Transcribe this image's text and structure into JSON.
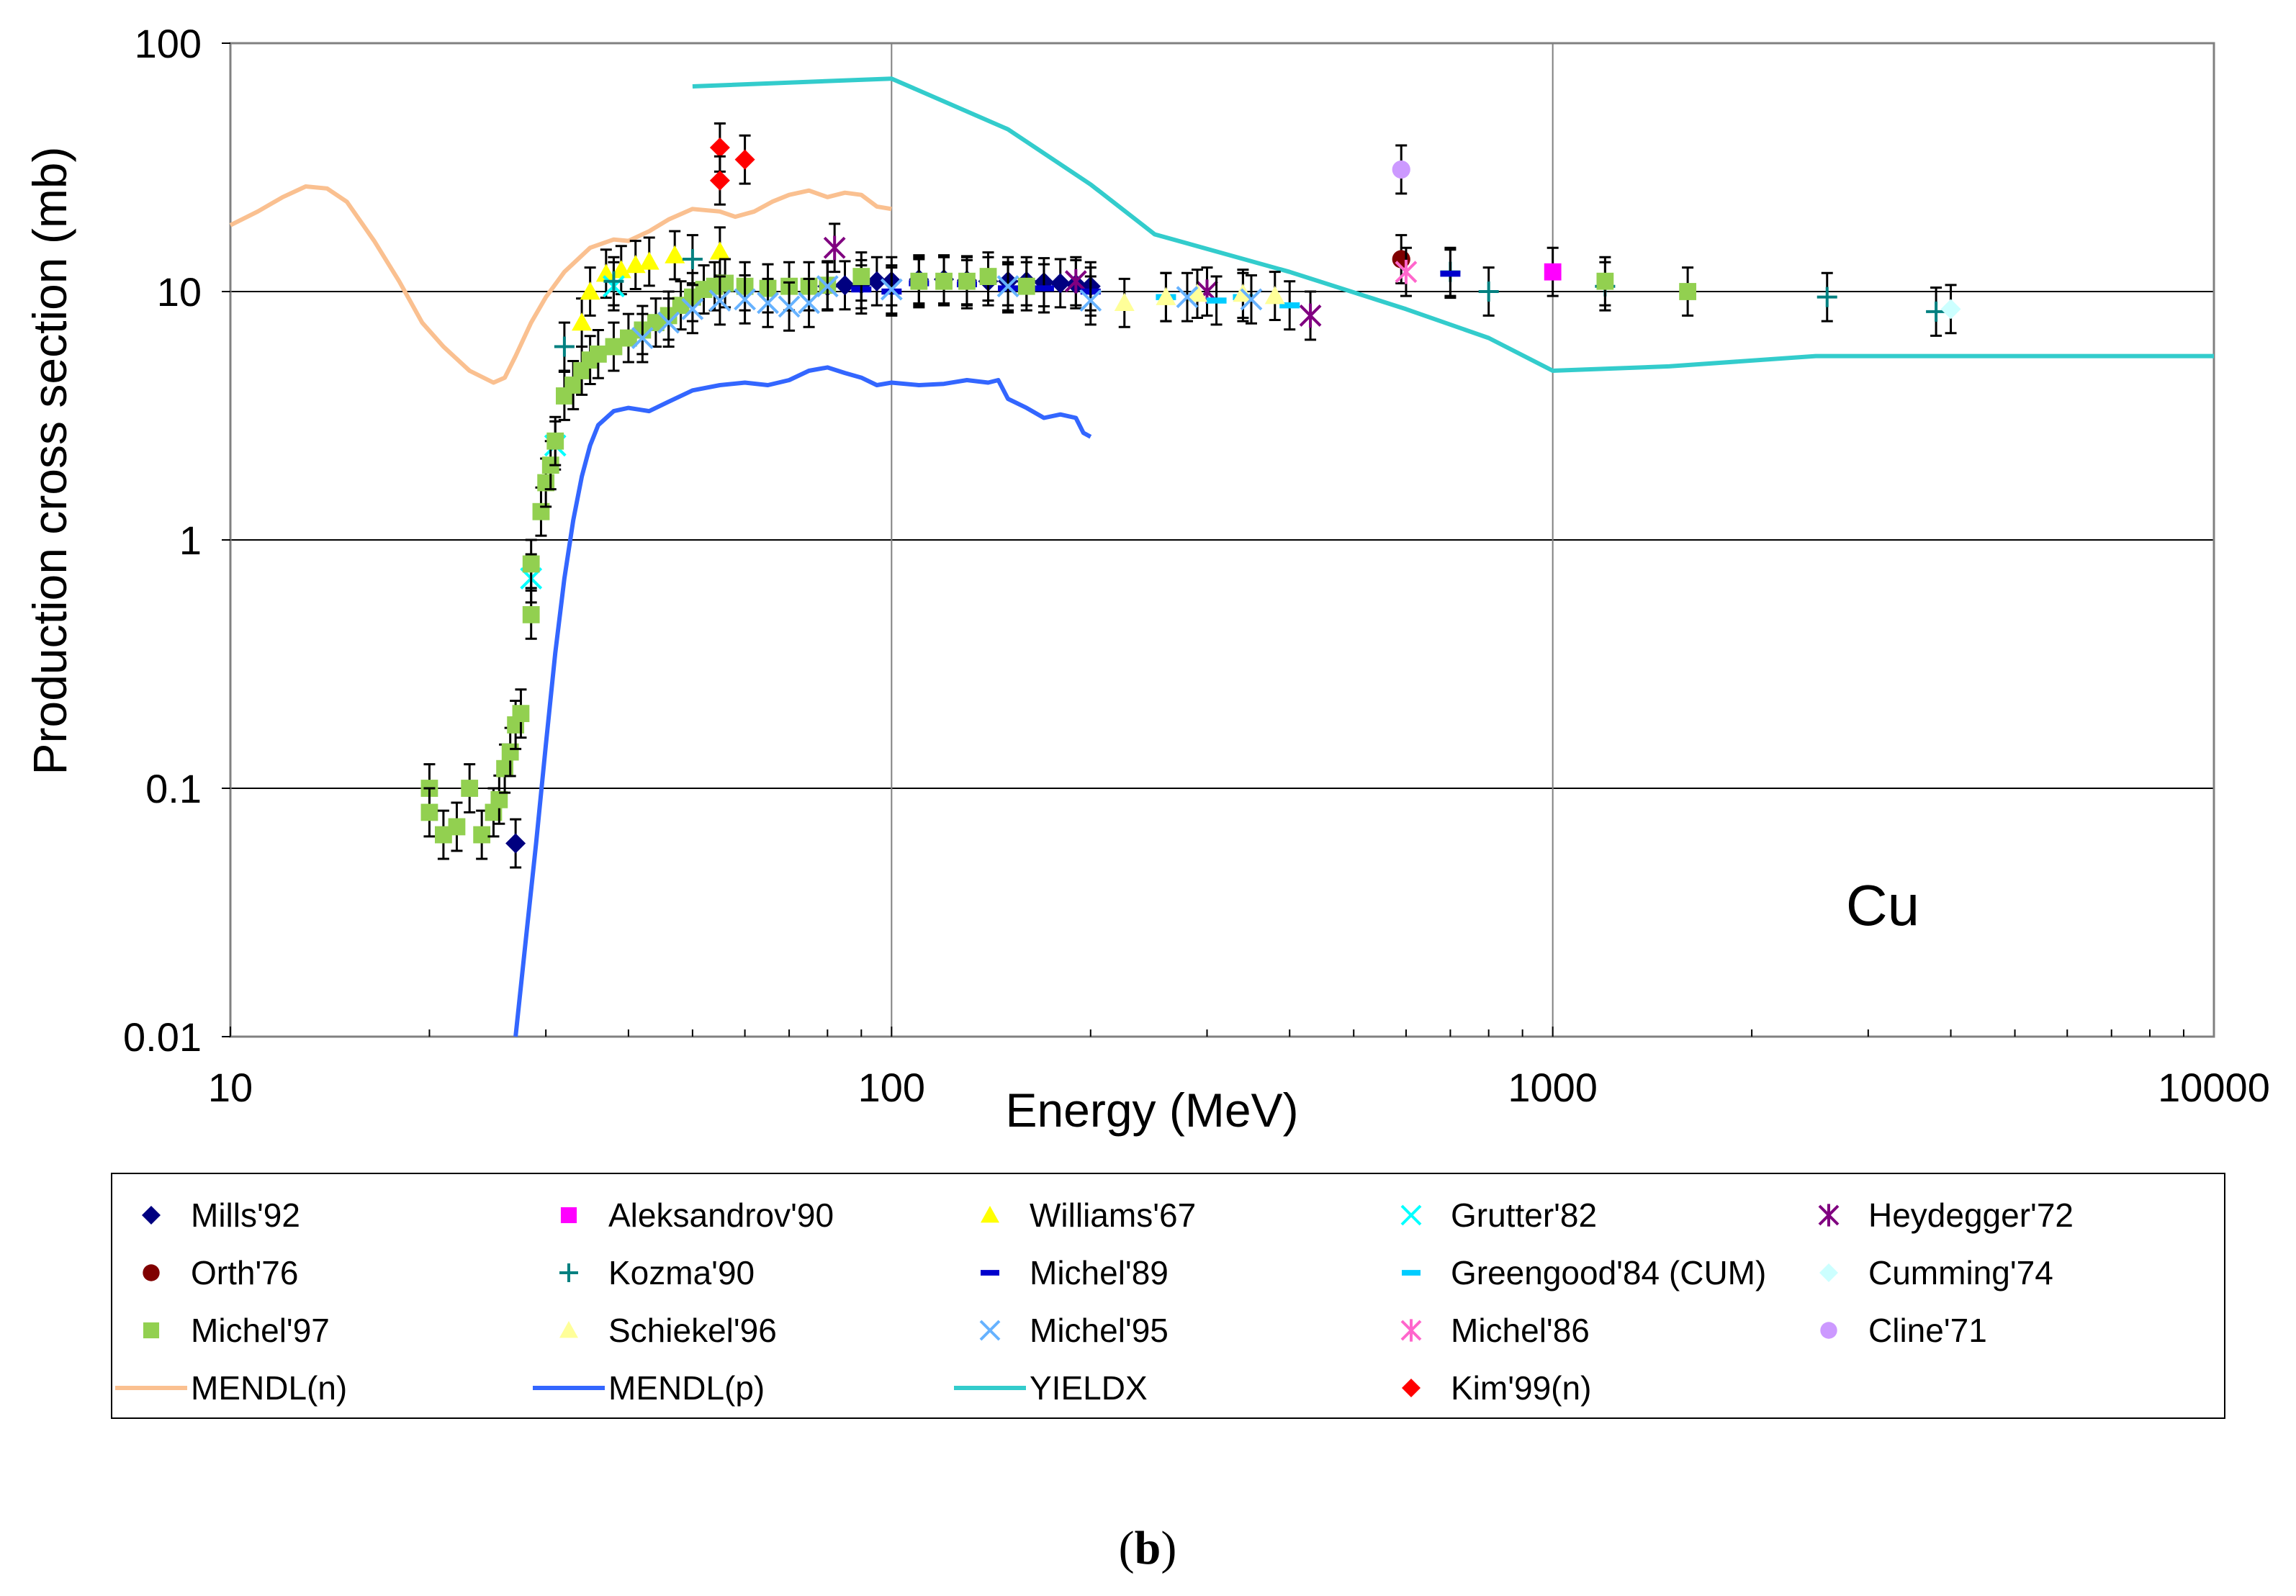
{
  "chart_data": {
    "type": "scatter",
    "xscale": "log",
    "yscale": "log",
    "xlabel": "Energy (MeV)",
    "ylabel": "Production cross section (mb)",
    "xlim": [
      10,
      10000
    ],
    "ylim": [
      0.01,
      100
    ],
    "xticks": [
      "10",
      "100",
      "1000",
      "10000"
    ],
    "yticks": [
      "0.01",
      "0.1",
      "1",
      "10",
      "100"
    ],
    "grid": true,
    "annotation": "Cu",
    "caption_bold": "b",
    "caption": "(b)",
    "series": [
      {
        "name": "Mills'92",
        "marker": "diamond",
        "color": "#000080",
        "points": [
          [
            27,
            0.06
          ],
          [
            80,
            10.5
          ],
          [
            85,
            10.6
          ],
          [
            90,
            10.7
          ],
          [
            95,
            11
          ],
          [
            100,
            11
          ],
          [
            110,
            11.2
          ],
          [
            120,
            11.2
          ],
          [
            130,
            11.1
          ],
          [
            140,
            11
          ],
          [
            150,
            11
          ],
          [
            160,
            11
          ],
          [
            170,
            10.9
          ],
          [
            180,
            10.8
          ],
          [
            190,
            10.7
          ],
          [
            200,
            10.5
          ]
        ]
      },
      {
        "name": "Aleksandrov'90",
        "marker": "square",
        "color": "#FF00FF",
        "points": [
          [
            1000,
            12
          ]
        ]
      },
      {
        "name": "Williams'67",
        "marker": "triangle",
        "color": "#FFFF00",
        "points": [
          [
            34,
            7.5
          ],
          [
            35,
            10
          ],
          [
            37,
            11.8
          ],
          [
            39,
            12.2
          ],
          [
            41,
            12.8
          ],
          [
            43,
            13.2
          ],
          [
            47,
            14
          ],
          [
            55,
            14.5
          ]
        ]
      },
      {
        "name": "Grutter'82",
        "marker": "x",
        "color": "#00FFFF",
        "points": [
          [
            28.5,
            0.7
          ],
          [
            31,
            2.4
          ],
          [
            38,
            10.5
          ]
        ]
      },
      {
        "name": "Heydegger'72",
        "marker": "star",
        "color": "#800080",
        "points": [
          [
            82,
            15
          ],
          [
            190,
            11
          ],
          [
            300,
            10
          ],
          [
            430,
            8
          ]
        ]
      },
      {
        "name": "Orth'76",
        "marker": "circle",
        "color": "#800000",
        "points": [
          [
            590,
            13.5
          ]
        ]
      },
      {
        "name": "Kozma'90",
        "marker": "plus",
        "color": "#008080",
        "points": [
          [
            32,
            6
          ],
          [
            38,
            11
          ],
          [
            50,
            13.5
          ],
          [
            700,
            12
          ],
          [
            800,
            10
          ],
          [
            1200,
            10.5
          ],
          [
            2600,
            9.5
          ],
          [
            3800,
            8.3
          ]
        ]
      },
      {
        "name": "Michel'89",
        "marker": "dash",
        "color": "#0000CC",
        "points": [
          [
            90,
            10.2
          ],
          [
            100,
            10
          ],
          [
            110,
            10.8
          ],
          [
            130,
            10.7
          ],
          [
            150,
            10.3
          ],
          [
            170,
            10.3
          ],
          [
            200,
            10
          ],
          [
            700,
            11.8
          ]
        ]
      },
      {
        "name": "Greengood'84 (CUM)",
        "marker": "dash",
        "color": "#00CCFF",
        "points": [
          [
            260,
            9.5
          ],
          [
            310,
            9.2
          ],
          [
            340,
            9.5
          ],
          [
            400,
            8.8
          ]
        ]
      },
      {
        "name": "Cumming'74",
        "marker": "diamond",
        "color": "#CCFFFF",
        "points": [
          [
            4000,
            8.5
          ]
        ]
      },
      {
        "name": "Michel'97",
        "marker": "square",
        "color": "#92D050",
        "points": [
          [
            20,
            0.1
          ],
          [
            20,
            0.08
          ],
          [
            21,
            0.065
          ],
          [
            22,
            0.07
          ],
          [
            23,
            0.1
          ],
          [
            24,
            0.065
          ],
          [
            25,
            0.08
          ],
          [
            25.5,
            0.09
          ],
          [
            26,
            0.12
          ],
          [
            26.5,
            0.14
          ],
          [
            27,
            0.18
          ],
          [
            27.5,
            0.2
          ],
          [
            28.5,
            0.5
          ],
          [
            28.5,
            0.8
          ],
          [
            29.5,
            1.3
          ],
          [
            30,
            1.7
          ],
          [
            30.5,
            2.0
          ],
          [
            31,
            2.5
          ],
          [
            32,
            3.8
          ],
          [
            33,
            4.2
          ],
          [
            34,
            4.8
          ],
          [
            35,
            5.3
          ],
          [
            36,
            5.6
          ],
          [
            38,
            6
          ],
          [
            40,
            6.5
          ],
          [
            42,
            7
          ],
          [
            44,
            7.5
          ],
          [
            46,
            8
          ],
          [
            48,
            8.8
          ],
          [
            50,
            9.5
          ],
          [
            52,
            10.2
          ],
          [
            54,
            10.5
          ],
          [
            56,
            10.8
          ],
          [
            60,
            10.5
          ],
          [
            65,
            10.3
          ],
          [
            70,
            10.5
          ],
          [
            75,
            10.5
          ],
          [
            80,
            10.6
          ],
          [
            90,
            11.5
          ],
          [
            110,
            11
          ],
          [
            120,
            11
          ],
          [
            130,
            11
          ],
          [
            140,
            11.5
          ],
          [
            160,
            10.5
          ],
          [
            1200,
            11
          ],
          [
            1600,
            10
          ]
        ]
      },
      {
        "name": "Schiekel'96",
        "marker": "triangle",
        "color": "#FFFF99",
        "points": [
          [
            225,
            9
          ],
          [
            260,
            9.5
          ],
          [
            290,
            9.8
          ],
          [
            340,
            9.8
          ],
          [
            380,
            9.6
          ]
        ]
      },
      {
        "name": "Michel'95",
        "marker": "x",
        "color": "#66B2FF",
        "points": [
          [
            42,
            6.5
          ],
          [
            46,
            7.5
          ],
          [
            50,
            8.5
          ],
          [
            55,
            9.2
          ],
          [
            60,
            9.3
          ],
          [
            65,
            9
          ],
          [
            70,
            8.7
          ],
          [
            75,
            9
          ],
          [
            80,
            10.5
          ],
          [
            100,
            10.2
          ],
          [
            150,
            10.5
          ],
          [
            200,
            9.2
          ],
          [
            280,
            9.5
          ],
          [
            350,
            9.3
          ]
        ]
      },
      {
        "name": "Michel'86",
        "marker": "star",
        "color": "#FF66CC",
        "points": [
          [
            600,
            12
          ]
        ]
      },
      {
        "name": "Cline'71",
        "marker": "circle",
        "color": "#CC99FF",
        "points": [
          [
            590,
            31
          ]
        ]
      },
      {
        "name": "Kim'99(n)",
        "marker": "diamond",
        "color": "#FF0000",
        "points": [
          [
            55,
            38
          ],
          [
            55,
            28
          ],
          [
            60,
            34
          ]
        ]
      }
    ],
    "curves": [
      {
        "name": "MENDL(n)",
        "color": "#FAC090",
        "points": [
          [
            10,
            18.5
          ],
          [
            11,
            21
          ],
          [
            12,
            24
          ],
          [
            13,
            26.5
          ],
          [
            14,
            26
          ],
          [
            15,
            23
          ],
          [
            16.5,
            16
          ],
          [
            18,
            11
          ],
          [
            19.5,
            7.5
          ],
          [
            21,
            6
          ],
          [
            23,
            4.8
          ],
          [
            25,
            4.3
          ],
          [
            26,
            4.5
          ],
          [
            27,
            5.5
          ],
          [
            28.5,
            7.5
          ],
          [
            30,
            9.5
          ],
          [
            32,
            12
          ],
          [
            35,
            15
          ],
          [
            38,
            16.2
          ],
          [
            40,
            16
          ],
          [
            43,
            17.5
          ],
          [
            46,
            19.5
          ],
          [
            50,
            21.5
          ],
          [
            55,
            21
          ],
          [
            58,
            20
          ],
          [
            62,
            21
          ],
          [
            66,
            23
          ],
          [
            70,
            24.5
          ],
          [
            75,
            25.5
          ],
          [
            80,
            24
          ],
          [
            85,
            25
          ],
          [
            90,
            24.5
          ],
          [
            95,
            22
          ],
          [
            100,
            21.5
          ]
        ]
      },
      {
        "name": "MENDL(p)",
        "color": "#3366FF",
        "points": [
          [
            27,
            0.01
          ],
          [
            28,
            0.025
          ],
          [
            29,
            0.06
          ],
          [
            30,
            0.15
          ],
          [
            31,
            0.35
          ],
          [
            32,
            0.7
          ],
          [
            33,
            1.2
          ],
          [
            34,
            1.8
          ],
          [
            35,
            2.4
          ],
          [
            36,
            2.9
          ],
          [
            38,
            3.3
          ],
          [
            40,
            3.4
          ],
          [
            43,
            3.3
          ],
          [
            46,
            3.6
          ],
          [
            50,
            4.0
          ],
          [
            55,
            4.2
          ],
          [
            60,
            4.3
          ],
          [
            65,
            4.2
          ],
          [
            70,
            4.4
          ],
          [
            75,
            4.8
          ],
          [
            80,
            4.95
          ],
          [
            85,
            4.7
          ],
          [
            90,
            4.5
          ],
          [
            95,
            4.2
          ],
          [
            100,
            4.3
          ],
          [
            110,
            4.2
          ],
          [
            120,
            4.25
          ],
          [
            130,
            4.4
          ],
          [
            140,
            4.3
          ],
          [
            145,
            4.4
          ],
          [
            150,
            3.7
          ],
          [
            160,
            3.4
          ],
          [
            170,
            3.1
          ],
          [
            180,
            3.2
          ],
          [
            190,
            3.1
          ],
          [
            195,
            2.7
          ],
          [
            200,
            2.6
          ]
        ]
      },
      {
        "name": "YIELDX",
        "color": "#33CCCC",
        "points": [
          [
            50,
            67
          ],
          [
            100,
            72
          ],
          [
            150,
            45
          ],
          [
            200,
            27
          ],
          [
            250,
            17
          ],
          [
            400,
            12
          ],
          [
            600,
            8.5
          ],
          [
            800,
            6.5
          ],
          [
            1000,
            4.8
          ],
          [
            1500,
            5
          ],
          [
            2500,
            5.5
          ],
          [
            10000,
            5.5
          ]
        ]
      }
    ],
    "legend": {
      "position": "bottom",
      "entries": [
        {
          "label": "Mills'92",
          "kind": "marker",
          "marker": "diamond",
          "color": "#000080"
        },
        {
          "label": "Aleksandrov'90",
          "kind": "marker",
          "marker": "square",
          "color": "#FF00FF"
        },
        {
          "label": "Williams'67",
          "kind": "marker",
          "marker": "triangle",
          "color": "#FFFF00"
        },
        {
          "label": "Grutter'82",
          "kind": "marker",
          "marker": "x",
          "color": "#00FFFF"
        },
        {
          "label": "Heydegger'72",
          "kind": "marker",
          "marker": "star",
          "color": "#800080"
        },
        {
          "label": "Orth'76",
          "kind": "marker",
          "marker": "circle",
          "color": "#800000"
        },
        {
          "label": "Kozma'90",
          "kind": "marker",
          "marker": "plus",
          "color": "#008080"
        },
        {
          "label": "Michel'89",
          "kind": "marker",
          "marker": "dash",
          "color": "#0000CC"
        },
        {
          "label": "Greengood'84 (CUM)",
          "kind": "marker",
          "marker": "dash",
          "color": "#00CCFF"
        },
        {
          "label": "Cumming'74",
          "kind": "marker",
          "marker": "diamond",
          "color": "#CCFFFF"
        },
        {
          "label": "Michel'97",
          "kind": "marker",
          "marker": "square",
          "color": "#92D050"
        },
        {
          "label": "Schiekel'96",
          "kind": "marker",
          "marker": "triangle",
          "color": "#FFFF99"
        },
        {
          "label": "Michel'95",
          "kind": "marker",
          "marker": "x",
          "color": "#66B2FF"
        },
        {
          "label": "Michel'86",
          "kind": "marker",
          "marker": "star",
          "color": "#FF66CC"
        },
        {
          "label": "Cline'71",
          "kind": "marker",
          "marker": "circle",
          "color": "#CC99FF"
        },
        {
          "label": "MENDL(n)",
          "kind": "line",
          "color": "#FAC090"
        },
        {
          "label": "MENDL(p)",
          "kind": "line",
          "color": "#3366FF"
        },
        {
          "label": "YIELDX",
          "kind": "line",
          "color": "#33CCCC"
        },
        {
          "label": "Kim'99(n)",
          "kind": "marker",
          "marker": "diamond",
          "color": "#FF0000"
        }
      ]
    }
  }
}
